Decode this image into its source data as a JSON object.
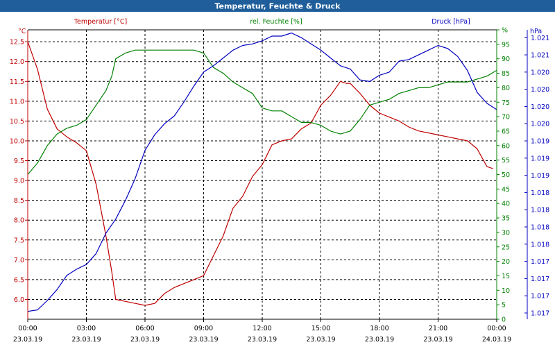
{
  "chart_data": {
    "type": "line",
    "title": "Temperatur, Feuchte & Druck",
    "x_ticks": [
      {
        "time": "00:00",
        "date": "23.03.19"
      },
      {
        "time": "03:00",
        "date": "23.03.19"
      },
      {
        "time": "06:00",
        "date": "23.03.19"
      },
      {
        "time": "09:00",
        "date": "23.03.19"
      },
      {
        "time": "12:00",
        "date": "23.03.19"
      },
      {
        "time": "15:00",
        "date": "23.03.19"
      },
      {
        "time": "18:00",
        "date": "23.03.19"
      },
      {
        "time": "21:00",
        "date": "23.03.19"
      },
      {
        "time": "00:00",
        "date": "24.03.19"
      }
    ],
    "xlim_hours": [
      0,
      24
    ],
    "axes": {
      "temperature": {
        "unit_label": "°C",
        "color": "#c00000",
        "ylim": [
          5.5,
          12.8
        ],
        "ticks": [
          "6.0",
          "6.5",
          "7.0",
          "7.5",
          "8.0",
          "8.5",
          "9.0",
          "9.5",
          "10.0",
          "10.5",
          "11.0",
          "11.5",
          "12.0",
          "12.5"
        ],
        "tick_values": [
          6.0,
          6.5,
          7.0,
          7.5,
          8.0,
          8.5,
          9.0,
          9.5,
          10.0,
          10.5,
          11.0,
          11.5,
          12.0,
          12.5
        ]
      },
      "humidity": {
        "unit_label": "%",
        "color": "#008000",
        "ylim": [
          0,
          100
        ],
        "ticks": [
          "0",
          "5",
          "10",
          "15",
          "20",
          "25",
          "30",
          "35",
          "40",
          "45",
          "50",
          "55",
          "60",
          "65",
          "70",
          "75",
          "80",
          "85",
          "90",
          "95",
          "%"
        ],
        "tick_values": [
          0,
          5,
          10,
          15,
          20,
          25,
          30,
          35,
          40,
          45,
          50,
          55,
          60,
          65,
          70,
          75,
          80,
          85,
          90,
          95,
          100
        ]
      },
      "pressure": {
        "unit_label": "hPa",
        "color": "#0000c0",
        "ticks": [
          "1.017",
          "1.017",
          "1.017",
          "1.017",
          "1.018",
          "1.018",
          "1.018",
          "1.018",
          "1.019",
          "1.019",
          "1.019",
          "1.020",
          "1.020",
          "1.020",
          "1.020",
          "1.021",
          "1.021"
        ],
        "tick_values": [
          0.4,
          1.5,
          2.6,
          3.7,
          4.8,
          5.9,
          7.0,
          8.1,
          9.2,
          10.3,
          11.4,
          12.5,
          13.6,
          14.7,
          15.8,
          16.9,
          18.0
        ],
        "ylim": [
          0,
          18.5
        ]
      }
    },
    "legend": [
      {
        "label": "Temperatur [°C]",
        "color": "#c00000",
        "position": "top-left"
      },
      {
        "label": "rel. Feuchte [%]",
        "color": "#008000",
        "position": "top-center"
      },
      {
        "label": "Druck [hPa]",
        "color": "#0000c0",
        "position": "top-right"
      }
    ],
    "series": [
      {
        "name": "Temperatur",
        "axis": "temperature",
        "color": "#c00000",
        "x": [
          0,
          0.5,
          1,
          1.5,
          2,
          2.5,
          3,
          3.5,
          4,
          4.3,
          4.5,
          5,
          5.5,
          6,
          6.5,
          7,
          7.5,
          8,
          8.5,
          9,
          9.5,
          10,
          10.5,
          11,
          11.5,
          12,
          12.5,
          13,
          13.5,
          14,
          14.5,
          15,
          15.5,
          16,
          16.3,
          16.5,
          17,
          17.5,
          18,
          18.5,
          19,
          19.5,
          20,
          20.5,
          21,
          21.5,
          22,
          22.5,
          23,
          23.5,
          23.8
        ],
        "values": [
          12.5,
          11.8,
          10.8,
          10.3,
          10.1,
          9.95,
          9.75,
          8.9,
          7.6,
          6.7,
          6.0,
          5.95,
          5.9,
          5.85,
          5.9,
          6.15,
          6.3,
          6.4,
          6.5,
          6.6,
          7.1,
          7.6,
          8.3,
          8.6,
          9.1,
          9.4,
          9.9,
          10.0,
          10.05,
          10.3,
          10.45,
          10.9,
          11.15,
          11.5,
          11.45,
          11.45,
          11.2,
          10.9,
          10.7,
          10.6,
          10.5,
          10.35,
          10.25,
          10.2,
          10.15,
          10.1,
          10.05,
          10.0,
          9.8,
          9.35,
          9.3
        ]
      },
      {
        "name": "rel. Feuchte",
        "axis": "humidity",
        "color": "#008000",
        "x": [
          0,
          0.5,
          1,
          1.5,
          2,
          2.5,
          3,
          3.5,
          4,
          4.3,
          4.5,
          5,
          5.5,
          6,
          6.5,
          7,
          7.5,
          8,
          8.5,
          9,
          9.5,
          10,
          10.5,
          11,
          11.5,
          12,
          12.5,
          13,
          13.5,
          14,
          14.5,
          15,
          15.5,
          16,
          16.5,
          17,
          17.5,
          18,
          18.5,
          19,
          19.5,
          20,
          20.5,
          21,
          21.5,
          22,
          22.5,
          23,
          23.5,
          24
        ],
        "values": [
          50,
          54,
          60,
          64,
          66,
          67,
          69,
          74,
          79,
          84,
          90,
          92,
          93,
          93,
          93,
          93,
          93,
          93,
          93,
          92,
          87,
          85,
          82,
          80,
          78,
          73,
          72,
          72,
          70,
          68,
          68,
          67,
          65,
          64,
          65,
          69,
          74,
          75,
          76,
          78,
          79,
          80,
          80,
          81,
          82,
          82,
          82,
          83,
          84,
          86
        ]
      },
      {
        "name": "Druck",
        "axis": "pressure",
        "color": "#0000c0",
        "x": [
          0,
          0.5,
          1,
          1.5,
          2,
          2.5,
          3,
          3.5,
          4,
          4.5,
          5,
          5.5,
          6,
          6.5,
          7,
          7.5,
          8,
          8.5,
          9,
          9.5,
          10,
          10.5,
          11,
          11.5,
          12,
          12.5,
          13,
          13.5,
          14,
          14.5,
          15,
          15.5,
          16,
          16.5,
          17,
          17.5,
          18,
          18.5,
          19,
          19.5,
          20,
          20.5,
          21,
          21.5,
          22,
          22.5,
          23,
          23.5,
          24
        ],
        "values": [
          0.5,
          0.6,
          1.2,
          1.9,
          2.8,
          3.2,
          3.5,
          4.2,
          5.5,
          6.4,
          7.6,
          9.0,
          10.8,
          11.8,
          12.5,
          13.0,
          13.9,
          14.9,
          15.8,
          16.2,
          16.7,
          17.2,
          17.5,
          17.6,
          17.8,
          18.1,
          18.1,
          18.3,
          18.0,
          17.6,
          17.2,
          16.7,
          16.2,
          16.0,
          15.3,
          15.2,
          15.6,
          15.8,
          16.5,
          16.6,
          16.9,
          17.2,
          17.5,
          17.3,
          16.8,
          15.9,
          14.5,
          13.8,
          13.4
        ]
      }
    ]
  }
}
